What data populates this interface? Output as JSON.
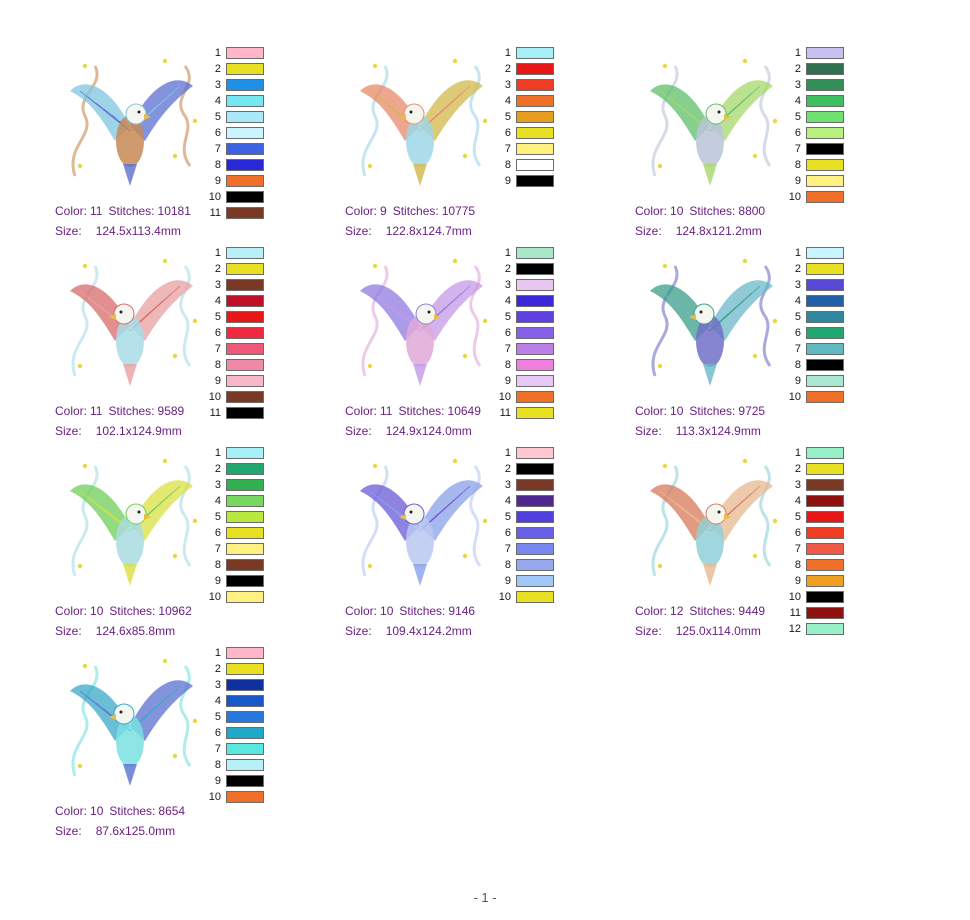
{
  "labels": {
    "color": "Color:",
    "stitches": "Stitches:",
    "size": "Size:"
  },
  "footer": {
    "page": "- 1 -"
  },
  "designs": [
    {
      "color_count": "11",
      "stitches": "10181",
      "size": "124.5x113.4mm",
      "tones": [
        "#7fc6e0",
        "#5b6fd1",
        "#c78a55"
      ],
      "swatches": [
        "#FFB6C8",
        "#E8E020",
        "#1E90E6",
        "#74E8F0",
        "#A8E8F8",
        "#CCF4FF",
        "#3C64E0",
        "#2828D8",
        "#F07028",
        "#000000",
        "#7A3A26"
      ]
    },
    {
      "color_count": "9",
      "stitches": "10775",
      "size": "122.8x124.7mm",
      "tones": [
        "#e88a6a",
        "#d2b84a",
        "#9fd6e8"
      ],
      "swatches": [
        "#A8F0F8",
        "#E81818",
        "#F03C20",
        "#F07028",
        "#E89C20",
        "#E8E020",
        "#FFF080",
        "#FFFFFF",
        "#000000"
      ]
    },
    {
      "color_count": "10",
      "stitches": "8800",
      "size": "124.8x121.2mm",
      "tones": [
        "#5fbf6a",
        "#a6d86a",
        "#b9c4d8"
      ],
      "swatches": [
        "#C8C0F0",
        "#2E7050",
        "#309058",
        "#3CC060",
        "#70E070",
        "#B8F080",
        "#000000",
        "#E8E020",
        "#FFF080",
        "#F07028"
      ]
    },
    {
      "color_count": "11",
      "stitches": "9589",
      "size": "102.1x124.9mm",
      "tones": [
        "#d86a6a",
        "#e8a0a0",
        "#a8dce8"
      ],
      "swatches": [
        "#B8F0F8",
        "#E8E020",
        "#7A3A26",
        "#C01028",
        "#E81818",
        "#F02840",
        "#F05878",
        "#F088A8",
        "#F8B8C8",
        "#7A3A26",
        "#000000"
      ]
    },
    {
      "color_count": "11",
      "stitches": "10649",
      "size": "124.9x124.0mm",
      "tones": [
        "#8f7ae0",
        "#c49ae8",
        "#e0a8d8"
      ],
      "swatches": [
        "#A8E8C8",
        "#000000",
        "#E8C8F0",
        "#3C28D8",
        "#6040E0",
        "#8860E8",
        "#B880E8",
        "#F080E0",
        "#E8C8F8",
        "#F07028",
        "#E8E020"
      ]
    },
    {
      "color_count": "10",
      "stitches": "9725",
      "size": "113.3x124.9mm",
      "tones": [
        "#3a9e8a",
        "#6ab8c8",
        "#7070c8"
      ],
      "swatches": [
        "#C8F4FF",
        "#E8E020",
        "#5848D8",
        "#2060A8",
        "#3088A0",
        "#20A870",
        "#60B8C0",
        "#000000",
        "#A8E8D0",
        "#F07028"
      ]
    },
    {
      "color_count": "10",
      "stitches": "10962",
      "size": "124.6x85.8mm",
      "tones": [
        "#6fcf5a",
        "#d8e040",
        "#a8dce0"
      ],
      "swatches": [
        "#A8F0F8",
        "#20A870",
        "#30B050",
        "#78D860",
        "#B8E840",
        "#E8E020",
        "#FFF080",
        "#7A3A26",
        "#000000",
        "#FFF080"
      ]
    },
    {
      "color_count": "10",
      "stitches": "9146",
      "size": "109.4x124.2mm",
      "tones": [
        "#6a5ad8",
        "#8aa0e8",
        "#b8c8f0"
      ],
      "swatches": [
        "#FFC8D0",
        "#000000",
        "#7A3A26",
        "#502890",
        "#5040E0",
        "#6860E8",
        "#7888F0",
        "#98A8F0",
        "#A0C8F8",
        "#E8E020"
      ]
    },
    {
      "color_count": "12",
      "stitches": "9449",
      "size": "125.0x114.0mm",
      "tones": [
        "#d87a5a",
        "#e8b890",
        "#8fd0d8"
      ],
      "swatches": [
        "#98F0C8",
        "#E8E020",
        "#7A3A26",
        "#901010",
        "#E81818",
        "#F03C20",
        "#F05848",
        "#F07028",
        "#F0A020",
        "#000000",
        "#901010",
        "#98F0C8"
      ]
    },
    {
      "color_count": "10",
      "stitches": "8654",
      "size": "87.6x125.0mm",
      "tones": [
        "#3aa8c8",
        "#5a70d0",
        "#7ae0e0"
      ],
      "swatches": [
        "#FFB6C8",
        "#E8E020",
        "#1030A0",
        "#1858C8",
        "#2878E0",
        "#20A8C8",
        "#58E8E0",
        "#B8F0F8",
        "#000000",
        "#F07028"
      ]
    }
  ]
}
